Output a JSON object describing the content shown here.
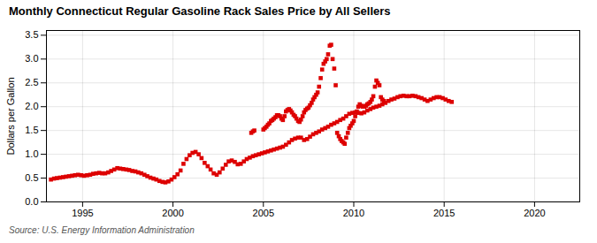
{
  "chart_data": {
    "type": "scatter",
    "title": "Monthly Connecticut Regular Gasoline Rack Sales Price by All Sellers",
    "ylabel": "Dollars per Gallon",
    "source": "Source: U.S. Energy Information Administration",
    "color": "#DD0000",
    "marker": "square",
    "grid": true,
    "xlim": [
      1993.0,
      2022.5
    ],
    "ylim": [
      0.0,
      3.6
    ],
    "xticks": [
      1995,
      2000,
      2005,
      2010,
      2015,
      2020
    ],
    "yticks": [
      {
        "value": 0.0,
        "label": "0.0"
      },
      0.5,
      {
        "value": 1.0,
        "label": "1.0"
      },
      1.5,
      {
        "value": 2.0,
        "label": "2.0"
      },
      2.5,
      {
        "value": 3.0,
        "label": "3.0"
      },
      3.5
    ],
    "x": [
      1993.25,
      1993.42,
      1993.58,
      1993.75,
      1993.92,
      1994.08,
      1994.25,
      1994.42,
      1994.58,
      1994.75,
      1994.92,
      1995.08,
      1995.25,
      1995.42,
      1995.58,
      1995.75,
      1995.92,
      1996.08,
      1996.25,
      1996.42,
      1996.58,
      1996.75,
      1996.92,
      1997.08,
      1997.25,
      1997.42,
      1997.58,
      1997.75,
      1997.92,
      1998.08,
      1998.25,
      1998.42,
      1998.58,
      1998.75,
      1998.92,
      1999.08,
      1999.25,
      1999.42,
      1999.58,
      1999.75,
      1999.92,
      2000.08,
      2000.25,
      2000.42,
      2000.58,
      2000.75,
      2000.92,
      2001.08,
      2001.25,
      2001.42,
      2001.58,
      2001.75,
      2001.92,
      2002.08,
      2002.25,
      2002.42,
      2002.58,
      2002.75,
      2002.92,
      2003.08,
      2003.25,
      2003.42,
      2003.58,
      2003.75,
      2003.92,
      2004.08,
      2004.25,
      2004.42,
      2004.58,
      2004.75,
      2004.92,
      2005.08,
      2005.25,
      2005.42,
      2005.58,
      2005.75,
      2005.92,
      2006.08,
      2006.25,
      2006.42,
      2006.58,
      2006.75,
      2006.92,
      2007.08,
      2007.25,
      2007.42,
      2007.58,
      2007.75,
      2007.92,
      2008.08,
      2008.25,
      2008.42,
      2008.58,
      2008.75,
      2008.92,
      2009.08,
      2009.25,
      2009.42,
      2009.58,
      2009.75,
      2009.92,
      2010.08,
      2010.25,
      2010.42,
      2010.58,
      2010.75,
      2010.92,
      2011.08,
      2011.25,
      2011.42,
      2011.58,
      2011.75,
      2011.92,
      2012.08,
      2012.25,
      2012.42,
      2012.58,
      2012.75,
      2012.92,
      2013.08,
      2013.25,
      2013.42,
      2013.58,
      2013.75,
      2013.92,
      2014.08,
      2014.25,
      2014.42,
      2014.58,
      2014.75,
      2014.92,
      2015.08,
      2015.25,
      2015.42,
      2004.33,
      2004.42,
      2004.5,
      2005.0,
      2005.08,
      2005.17,
      2005.25,
      2005.33,
      2005.42,
      2005.5,
      2005.58,
      2005.67,
      2005.75,
      2005.83,
      2005.92,
      2006.0,
      2006.08,
      2006.17,
      2006.25,
      2006.33,
      2006.42,
      2006.5,
      2006.58,
      2006.67,
      2006.75,
      2006.83,
      2006.92,
      2007.0,
      2007.08,
      2007.17,
      2007.25,
      2007.33,
      2007.42,
      2007.5,
      2007.58,
      2007.67,
      2007.75,
      2007.83,
      2007.92,
      2008.0,
      2008.08,
      2008.17,
      2008.25,
      2008.33,
      2008.42,
      2008.5,
      2008.58,
      2008.67,
      2008.75,
      2008.83,
      2008.92,
      2009.0,
      2009.08,
      2009.17,
      2009.25,
      2009.33,
      2009.42,
      2009.5,
      2009.58,
      2009.67,
      2009.75,
      2009.83,
      2009.92,
      2010.0,
      2010.08,
      2010.17,
      2010.25,
      2010.33,
      2010.42,
      2010.5,
      2010.58,
      2010.67,
      2010.75,
      2010.83,
      2010.92,
      2011.0,
      2011.08,
      2011.17,
      2011.25,
      2011.33,
      2011.42,
      2011.5,
      2011.58,
      2011.67
    ],
    "values": [
      0.47,
      0.49,
      0.5,
      0.51,
      0.52,
      0.53,
      0.54,
      0.55,
      0.56,
      0.57,
      0.56,
      0.55,
      0.56,
      0.57,
      0.59,
      0.6,
      0.61,
      0.6,
      0.6,
      0.62,
      0.65,
      0.68,
      0.71,
      0.7,
      0.69,
      0.68,
      0.67,
      0.65,
      0.64,
      0.62,
      0.6,
      0.57,
      0.54,
      0.51,
      0.49,
      0.47,
      0.44,
      0.42,
      0.41,
      0.43,
      0.47,
      0.52,
      0.58,
      0.66,
      0.8,
      0.9,
      0.98,
      1.03,
      1.05,
      1.0,
      0.92,
      0.82,
      0.75,
      0.68,
      0.6,
      0.57,
      0.62,
      0.7,
      0.78,
      0.85,
      0.87,
      0.84,
      0.79,
      0.8,
      0.85,
      0.9,
      0.93,
      0.96,
      0.98,
      1.0,
      1.02,
      1.04,
      1.06,
      1.08,
      1.1,
      1.12,
      1.14,
      1.16,
      1.2,
      1.25,
      1.3,
      1.33,
      1.35,
      1.35,
      1.3,
      1.32,
      1.37,
      1.42,
      1.45,
      1.48,
      1.52,
      1.55,
      1.58,
      1.62,
      1.65,
      1.68,
      1.72,
      1.75,
      1.8,
      1.85,
      1.87,
      1.88,
      1.87,
      1.86,
      1.88,
      1.92,
      1.95,
      1.98,
      2.0,
      2.02,
      2.05,
      2.08,
      2.12,
      2.15,
      2.17,
      2.2,
      2.22,
      2.23,
      2.22,
      2.22,
      2.23,
      2.22,
      2.2,
      2.18,
      2.15,
      2.12,
      2.15,
      2.18,
      2.2,
      2.2,
      2.18,
      2.15,
      2.12,
      2.1,
      1.45,
      1.48,
      1.5,
      1.52,
      1.55,
      1.58,
      1.62,
      1.65,
      1.7,
      1.72,
      1.75,
      1.78,
      1.82,
      1.82,
      1.8,
      1.75,
      1.72,
      1.8,
      1.9,
      1.93,
      1.95,
      1.92,
      1.88,
      1.83,
      1.8,
      1.75,
      1.7,
      1.68,
      1.73,
      1.8,
      1.88,
      1.93,
      1.96,
      1.98,
      2.03,
      2.08,
      2.15,
      2.2,
      2.25,
      2.3,
      2.42,
      2.6,
      2.78,
      2.9,
      2.95,
      3.0,
      3.1,
      3.28,
      3.3,
      3.0,
      2.8,
      2.45,
      1.45,
      1.38,
      1.32,
      1.28,
      1.25,
      1.22,
      1.35,
      1.45,
      1.55,
      1.6,
      1.65,
      1.7,
      1.8,
      1.9,
      2.0,
      2.05,
      2.02,
      2.0,
      2.0,
      2.02,
      2.05,
      2.07,
      2.1,
      2.15,
      2.22,
      2.42,
      2.55,
      2.5,
      2.45,
      2.2,
      2.15,
      2.12
    ]
  }
}
